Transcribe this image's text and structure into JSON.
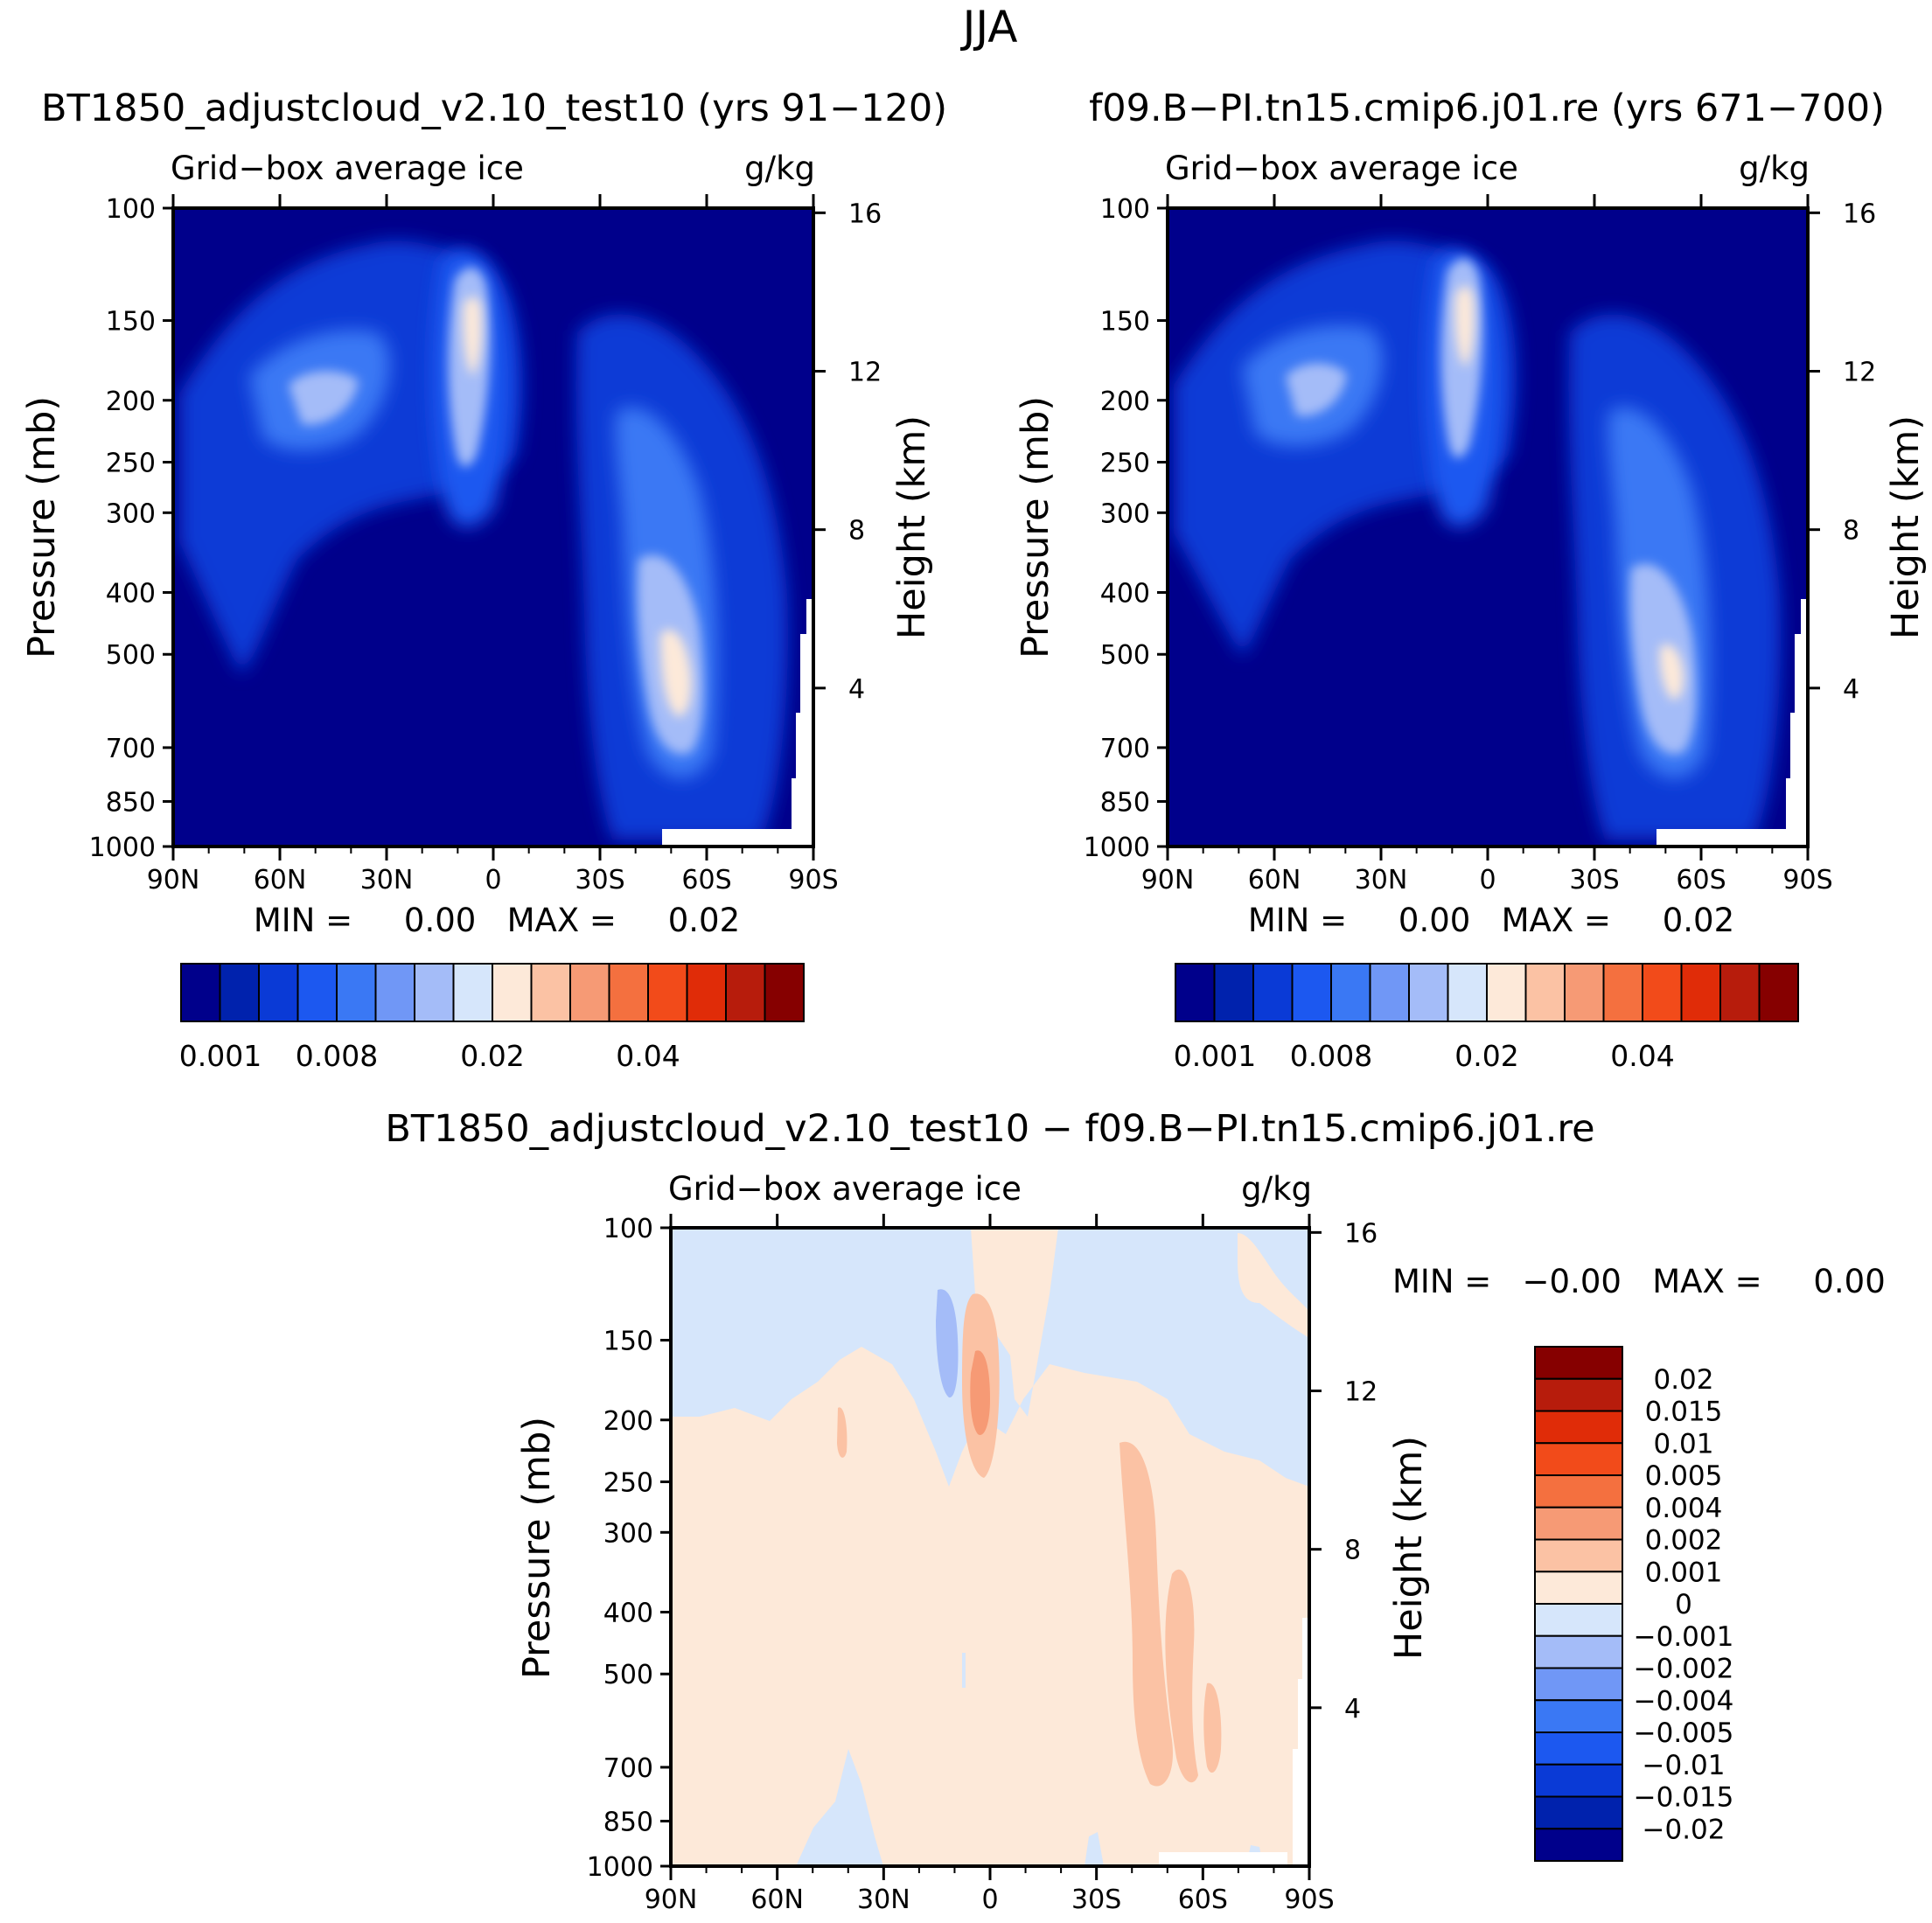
{
  "figure": {
    "title": "JJA",
    "diff_title": "BT1850_adjustcloud_v2.10_test10 − f09.B−PI.tn15.cmip6.j01.re"
  },
  "colors": {
    "abs_palette": [
      "#00008b",
      "#0022ad",
      "#0a3ad6",
      "#1c58f0",
      "#3a78f4",
      "#7097f6",
      "#a4bcf8",
      "#d6e6fb",
      "#fde9d9",
      "#fbc2a4",
      "#f69a75",
      "#f4703f",
      "#f24b1a",
      "#e02c08",
      "#b71c0c",
      "#860000"
    ],
    "diff_palette": [
      "#00008b",
      "#0022ad",
      "#0a3ad6",
      "#1c58f0",
      "#3a78f4",
      "#7097f6",
      "#a4bcf8",
      "#d6e6fb",
      "#fde9d9",
      "#fbc2a4",
      "#f69a75",
      "#f4703f",
      "#f24b1a",
      "#e02c08",
      "#b71c0c",
      "#860000"
    ]
  },
  "chart_data": [
    {
      "type": "heatmap",
      "title": "BT1850_adjustcloud_v2.10_test10 (yrs 91−120)",
      "field_label": "Grid−box average ice",
      "units": "g/kg",
      "ylabel": "Pressure (mb)",
      "ylabel_right": "Height (km)",
      "x_ticks": [
        "90N",
        "60N",
        "30N",
        "0",
        "30S",
        "60S",
        "90S"
      ],
      "x_range": [
        90,
        -90
      ],
      "y_ticks": [
        100,
        150,
        200,
        250,
        300,
        400,
        500,
        700,
        850,
        1000
      ],
      "y_range": [
        100,
        1000
      ],
      "height_ticks": [
        16,
        12,
        8,
        4
      ],
      "stats_text": "MIN =     0.00   MAX =     0.02",
      "colorbar_labels": [
        "0.001",
        "0.008",
        "0.02",
        "0.04"
      ],
      "colorbar_levels": [
        0.001,
        0.002,
        0.004,
        0.006,
        0.008,
        0.01,
        0.012,
        0.015,
        0.02,
        0.025,
        0.03,
        0.035,
        0.04,
        0.045,
        0.05
      ]
    },
    {
      "type": "heatmap",
      "title": "f09.B−PI.tn15.cmip6.j01.re (yrs 671−700)",
      "field_label": "Grid−box average ice",
      "units": "g/kg",
      "ylabel": "Pressure (mb)",
      "ylabel_right": "Height (km)",
      "x_ticks": [
        "90N",
        "60N",
        "30N",
        "0",
        "30S",
        "60S",
        "90S"
      ],
      "x_range": [
        90,
        -90
      ],
      "y_ticks": [
        100,
        150,
        200,
        250,
        300,
        400,
        500,
        700,
        850,
        1000
      ],
      "y_range": [
        100,
        1000
      ],
      "height_ticks": [
        16,
        12,
        8,
        4
      ],
      "stats_text": "MIN =     0.00   MAX =     0.02",
      "colorbar_labels": [
        "0.001",
        "0.008",
        "0.02",
        "0.04"
      ],
      "colorbar_levels": [
        0.001,
        0.002,
        0.004,
        0.006,
        0.008,
        0.01,
        0.012,
        0.015,
        0.02,
        0.025,
        0.03,
        0.035,
        0.04,
        0.045,
        0.05
      ]
    },
    {
      "type": "heatmap",
      "title": "BT1850_adjustcloud_v2.10_test10 − f09.B−PI.tn15.cmip6.j01.re",
      "field_label": "Grid−box average ice",
      "units": "g/kg",
      "ylabel": "Pressure (mb)",
      "ylabel_right": "Height (km)",
      "x_ticks": [
        "90N",
        "60N",
        "30N",
        "0",
        "30S",
        "60S",
        "90S"
      ],
      "x_range": [
        90,
        -90
      ],
      "y_ticks": [
        100,
        150,
        200,
        250,
        300,
        400,
        500,
        700,
        850,
        1000
      ],
      "y_range": [
        100,
        1000
      ],
      "height_ticks": [
        16,
        12,
        8,
        4
      ],
      "stats_text": "MIN =   −0.00   MAX =     0.00",
      "colorbar_labels": [
        "0.02",
        "0.015",
        "0.01",
        "0.005",
        "0.004",
        "0.002",
        "0.001",
        "0",
        "−0.001",
        "−0.002",
        "−0.004",
        "−0.005",
        "−0.01",
        "−0.015",
        "−0.02"
      ]
    }
  ]
}
